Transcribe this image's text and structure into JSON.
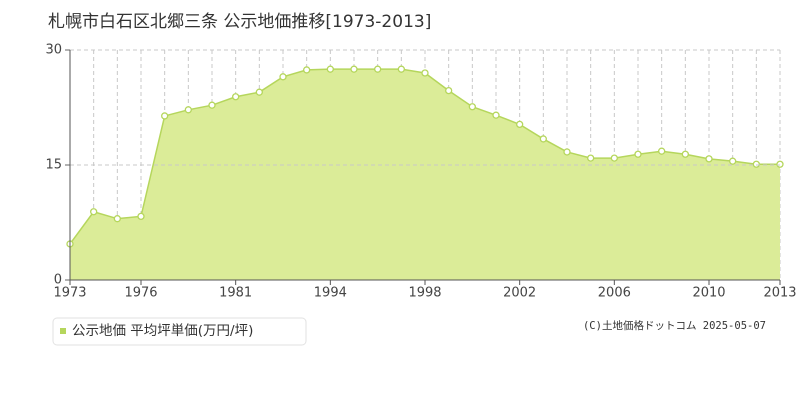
{
  "chart_data": {
    "type": "area",
    "title": "札幌市白石区北郷三条 公示地価推移[1973-2013]",
    "categories": [
      "1973",
      null,
      null,
      "1976",
      null,
      null,
      null,
      "1981",
      null,
      null,
      null,
      "1994",
      null,
      null,
      null,
      "1998",
      null,
      null,
      null,
      "2002",
      null,
      null,
      null,
      "2006",
      null,
      null,
      null,
      "2010",
      null,
      null,
      "2013"
    ],
    "series": [
      {
        "name": "公示地価 平均坪単価(万円/坪)",
        "color": "#b5d65c",
        "fill": "#dbec98",
        "values": [
          4.7,
          8.9,
          8.0,
          8.3,
          21.4,
          22.2,
          22.8,
          23.9,
          24.5,
          26.5,
          27.4,
          27.5,
          27.5,
          27.5,
          27.5,
          27.0,
          24.7,
          22.6,
          21.5,
          20.3,
          18.4,
          16.7,
          15.9,
          15.9,
          16.4,
          16.8,
          16.4,
          15.8,
          15.5,
          15.1,
          15.1
        ]
      }
    ],
    "ylim": [
      0,
      30
    ],
    "yticks": [
      0,
      15,
      30
    ],
    "grid": true,
    "copyright": "(C)土地価格ドットコム 2025-05-07"
  }
}
